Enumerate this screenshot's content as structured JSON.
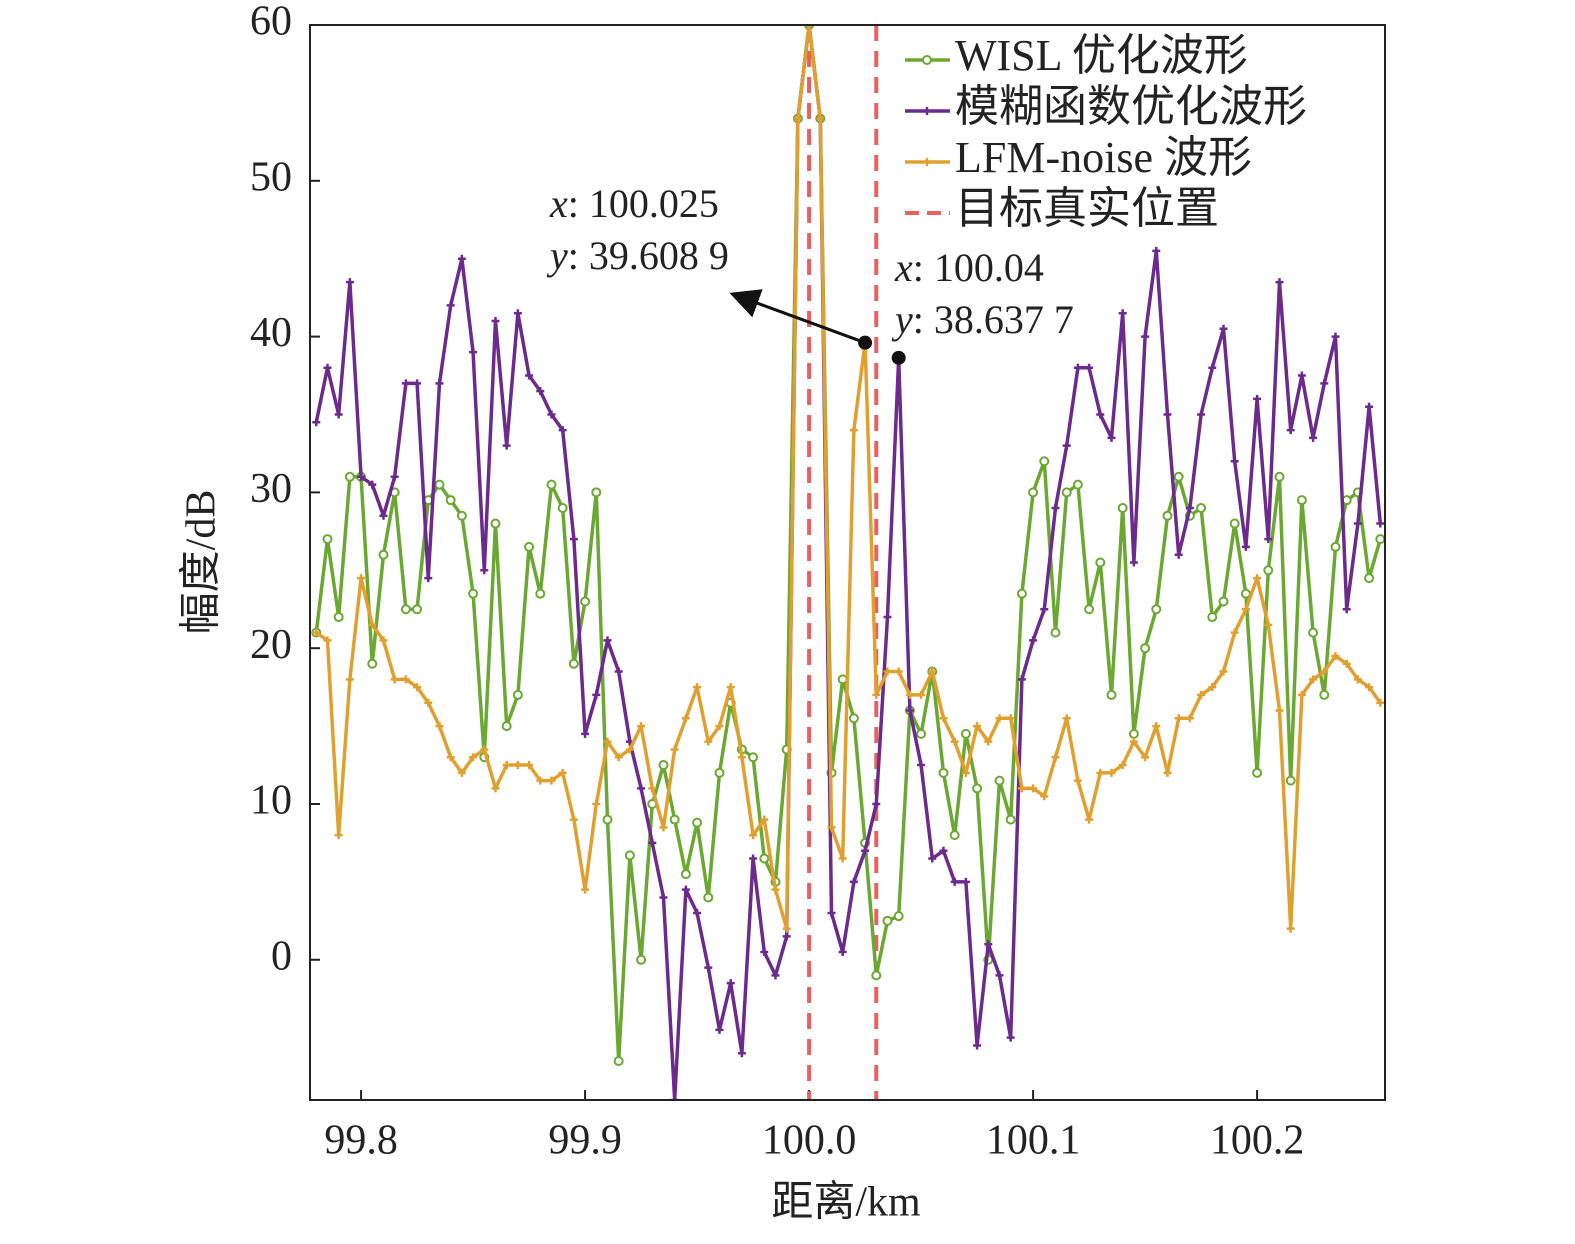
{
  "chart_data": {
    "type": "line",
    "xlabel": "距离/km",
    "ylabel": "幅度/dB",
    "xlim": [
      99.7772,
      100.2571
    ],
    "ylim": [
      -9,
      60
    ],
    "xticks": [
      99.8,
      99.9,
      {
        "value": 100,
        "label": "100.0"
      },
      100.1,
      100.2
    ],
    "yticks": [
      0,
      10,
      20,
      30,
      40,
      50,
      60
    ],
    "grid": false,
    "legend": "upper right",
    "x": [
      99.78,
      99.785,
      99.79,
      99.795,
      99.8,
      99.805,
      99.81,
      99.815,
      99.82,
      99.825,
      99.83,
      99.835,
      99.84,
      99.845,
      99.85,
      99.855,
      99.86,
      99.865,
      99.87,
      99.875,
      99.88,
      99.885,
      99.89,
      99.895,
      99.9,
      99.905,
      99.91,
      99.915,
      99.92,
      99.925,
      99.93,
      99.935,
      99.94,
      99.945,
      99.95,
      99.955,
      99.96,
      99.965,
      99.97,
      99.975,
      99.98,
      99.985,
      99.99,
      99.995,
      100,
      100.005,
      100.01,
      100.015,
      100.02,
      100.025,
      100.03,
      100.035,
      100.04,
      100.045,
      100.05,
      100.055,
      100.06,
      100.065,
      100.07,
      100.075,
      100.08,
      100.085,
      100.09,
      100.095,
      100.1,
      100.105,
      100.11,
      100.115,
      100.12,
      100.125,
      100.13,
      100.135,
      100.14,
      100.145,
      100.15,
      100.155,
      100.16,
      100.165,
      100.17,
      100.175,
      100.18,
      100.185,
      100.19,
      100.195,
      100.2,
      100.205,
      100.21,
      100.215,
      100.22,
      100.225,
      100.23,
      100.235,
      100.24,
      100.245,
      100.25,
      100.255
    ],
    "series": [
      {
        "name": "WISL 优化波形",
        "color": "#6aa832",
        "marker": "circle",
        "values": [
          21,
          27,
          22,
          31,
          31,
          19,
          26,
          30,
          22.5,
          22.5,
          29.5,
          30.5,
          29.5,
          28.5,
          23.5,
          13,
          28,
          15,
          17,
          26.5,
          23.5,
          30.5,
          29,
          19,
          23,
          30,
          9,
          -6.5,
          6.7,
          0,
          10,
          12.5,
          9,
          5.5,
          8.8,
          4,
          12,
          16.5,
          13.5,
          13,
          6.5,
          5,
          13.5,
          54,
          60,
          54,
          12,
          18,
          15.5,
          7.5,
          -1,
          2.5,
          2.8,
          16,
          14.5,
          18.5,
          12,
          8,
          14.5,
          11,
          0,
          11.5,
          9,
          23.5,
          30,
          32,
          21,
          30,
          30.5,
          22.5,
          25.5,
          17,
          29,
          14.5,
          20,
          22.5,
          28.5,
          31,
          28.5,
          29,
          22,
          23,
          28,
          23.5,
          12,
          25,
          31,
          11.5,
          29.5,
          21,
          17,
          26.5,
          29.5,
          30,
          24.5,
          27
        ]
      },
      {
        "name": "模糊函数优化波形",
        "color": "#6b2a8c",
        "marker": "plus",
        "values": [
          34.5,
          38,
          35,
          43.5,
          31,
          30.5,
          28.5,
          31,
          37,
          37,
          24.5,
          37,
          42,
          45,
          39,
          25,
          41,
          33,
          41.5,
          37.5,
          36.5,
          35,
          34,
          27,
          14.5,
          17,
          20.5,
          18.5,
          14,
          11,
          7.5,
          4,
          -9,
          4.5,
          3,
          -0.5,
          -4.5,
          -1.5,
          -6,
          6.5,
          0.5,
          -1,
          1.5,
          54,
          60,
          54,
          3,
          0.5,
          5,
          7,
          10,
          22,
          38.6377,
          16,
          12.5,
          6.5,
          7,
          5,
          5,
          -5.5,
          1,
          -1,
          -5,
          18,
          20.5,
          22.5,
          29,
          33,
          38,
          38,
          35,
          33.5,
          41.5,
          25.5,
          40,
          45.5,
          35,
          26,
          29,
          35,
          38,
          40.5,
          32,
          26.5,
          36,
          27,
          43.5,
          34,
          37.5,
          33.5,
          37,
          40,
          22.5,
          28,
          35.5,
          28
        ]
      },
      {
        "name": "LFM-noise 波形",
        "color": "#e0a030",
        "marker": "plus",
        "values": [
          21,
          20.5,
          8,
          18,
          24.5,
          21.5,
          20.5,
          18,
          18,
          17.5,
          16.5,
          15,
          13,
          12,
          13,
          13.5,
          11,
          12.5,
          12.5,
          12.5,
          11.5,
          11.5,
          12,
          9,
          4.5,
          10,
          14,
          13,
          13.5,
          15,
          11,
          8.5,
          13.5,
          15.5,
          17.5,
          14,
          15,
          17.5,
          13,
          8,
          9,
          4.5,
          2,
          54,
          60,
          54,
          8.5,
          6.5,
          34,
          39.6089,
          17,
          18.5,
          18.5,
          17,
          17,
          18.5,
          15.5,
          14,
          12,
          15,
          14,
          15.5,
          15.5,
          11,
          11,
          10.5,
          13,
          15.5,
          11.5,
          9,
          12,
          12,
          12.5,
          14,
          13,
          15,
          12,
          15.5,
          15.5,
          17,
          17.5,
          18.5,
          21,
          22.5,
          24.5,
          21.5,
          16,
          2,
          17,
          18,
          18.5,
          19.5,
          19,
          18,
          17.5,
          16.5
        ]
      }
    ],
    "vlines": {
      "name": "目标真实位置",
      "color": "#e86060",
      "x": [
        100,
        100.03
      ]
    },
    "annotations": [
      {
        "x": 100.025,
        "y": 39.6089,
        "x_prefix": "x",
        "x_text": ": 100.025",
        "y_prefix": "y",
        "y_text": ": 39.608 9"
      },
      {
        "x": 100.04,
        "y": 38.6377,
        "x_prefix": "x",
        "x_text": ": 100.04",
        "y_prefix": "y",
        "y_text": ": 38.637 7"
      }
    ]
  }
}
